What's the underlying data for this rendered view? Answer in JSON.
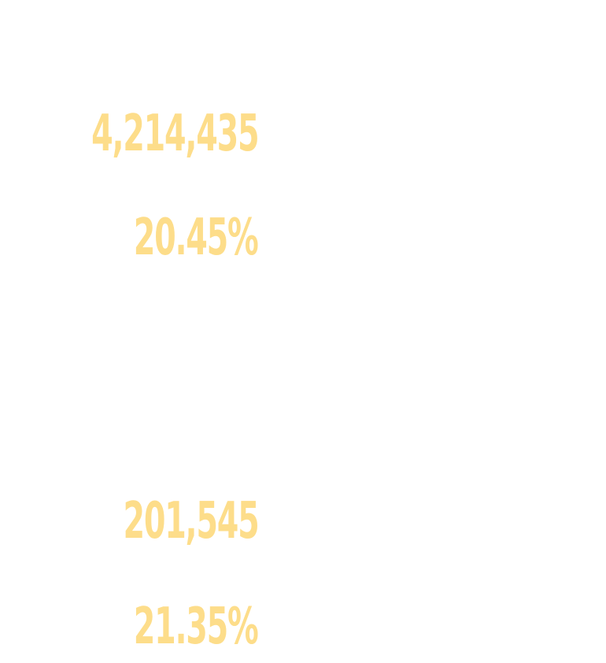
{
  "stats": {
    "group_1": {
      "count": "4,214,435",
      "percent": "20.45%"
    },
    "group_2": {
      "count": "201,545",
      "percent": "21.35%"
    }
  },
  "colors": {
    "text": "#fddd8a",
    "background": "#ffffff"
  }
}
